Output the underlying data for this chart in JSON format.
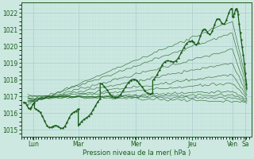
{
  "bg_color": "#cce8e0",
  "grid_color_major": "#aacccc",
  "grid_color_minor": "#bbdddd",
  "line_color": "#1a5c1a",
  "ylabel_values": [
    1015,
    1016,
    1017,
    1018,
    1019,
    1020,
    1021,
    1022
  ],
  "ylim": [
    1014.6,
    1022.6
  ],
  "xlim": [
    0.0,
    5.25
  ],
  "xtick_positions": [
    0.28,
    1.3,
    2.62,
    3.9,
    4.82,
    5.12
  ],
  "xtick_labels": [
    "Lun",
    "Mar",
    "Mer",
    "Jeu",
    "Ven",
    "Sa"
  ],
  "xlabel": "Pression niveau de la mer( hPa )",
  "xlabel_color": "#1a5c1a",
  "tick_color": "#1a5c1a",
  "figsize": [
    3.2,
    2.0
  ],
  "dpi": 100
}
